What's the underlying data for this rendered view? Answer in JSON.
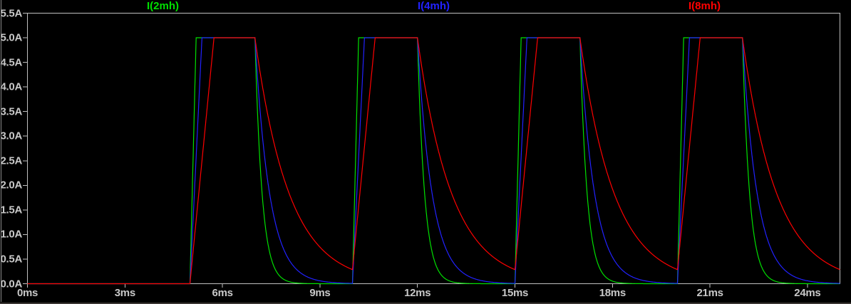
{
  "window": {
    "background": "#000000",
    "left_border_color": "#8a8a8a",
    "bottom_strip_color": "#3a3532"
  },
  "plot": {
    "border_color": "#c0c0c0",
    "tick_color": "#c0c0c0",
    "axis_label_color": "#c8c8c8"
  },
  "chart_data": {
    "type": "line",
    "title": "",
    "x_unit": "ms",
    "y_unit": "A",
    "x_range_ms": [
      0,
      25
    ],
    "y_range_A": [
      0,
      5.5
    ],
    "grid": false,
    "legend_position": "top",
    "x_ticks": {
      "values_ms": [
        0,
        3,
        6,
        9,
        12,
        15,
        18,
        21,
        24
      ],
      "labels": [
        "0ms",
        "3ms",
        "6ms",
        "9ms",
        "12ms",
        "15ms",
        "18ms",
        "21ms",
        "24ms"
      ]
    },
    "y_ticks": {
      "values_A": [
        5.5,
        5.0,
        4.5,
        4.0,
        3.5,
        3.0,
        2.5,
        2.0,
        1.5,
        1.0,
        0.5,
        0.0
      ],
      "labels": [
        "5.5A",
        "5.0A",
        "4.5A",
        "4.0A",
        "3.5A",
        "3.0A",
        "2.5A",
        "2.0A",
        "1.5A",
        "1.0A",
        "0.5A",
        "0.0A"
      ]
    },
    "pulse": {
      "amplitude_A": 5.0,
      "first_start_ms": 5.0,
      "period_ms": 5.0,
      "on_ms": 2.0,
      "count": 4
    },
    "series": [
      {
        "name": "I(2mh)",
        "color": "#00e000",
        "inductance_mH": 2,
        "rise_ms": 0.19,
        "decay_tau_ms": 0.22
      },
      {
        "name": "I(4mh)",
        "color": "#2222ff",
        "inductance_mH": 4,
        "rise_ms": 0.37,
        "decay_tau_ms": 0.45
      },
      {
        "name": "I(8mh)",
        "color": "#ff0000",
        "inductance_mH": 8,
        "rise_ms": 0.74,
        "decay_tau_ms": 1.05
      }
    ]
  }
}
